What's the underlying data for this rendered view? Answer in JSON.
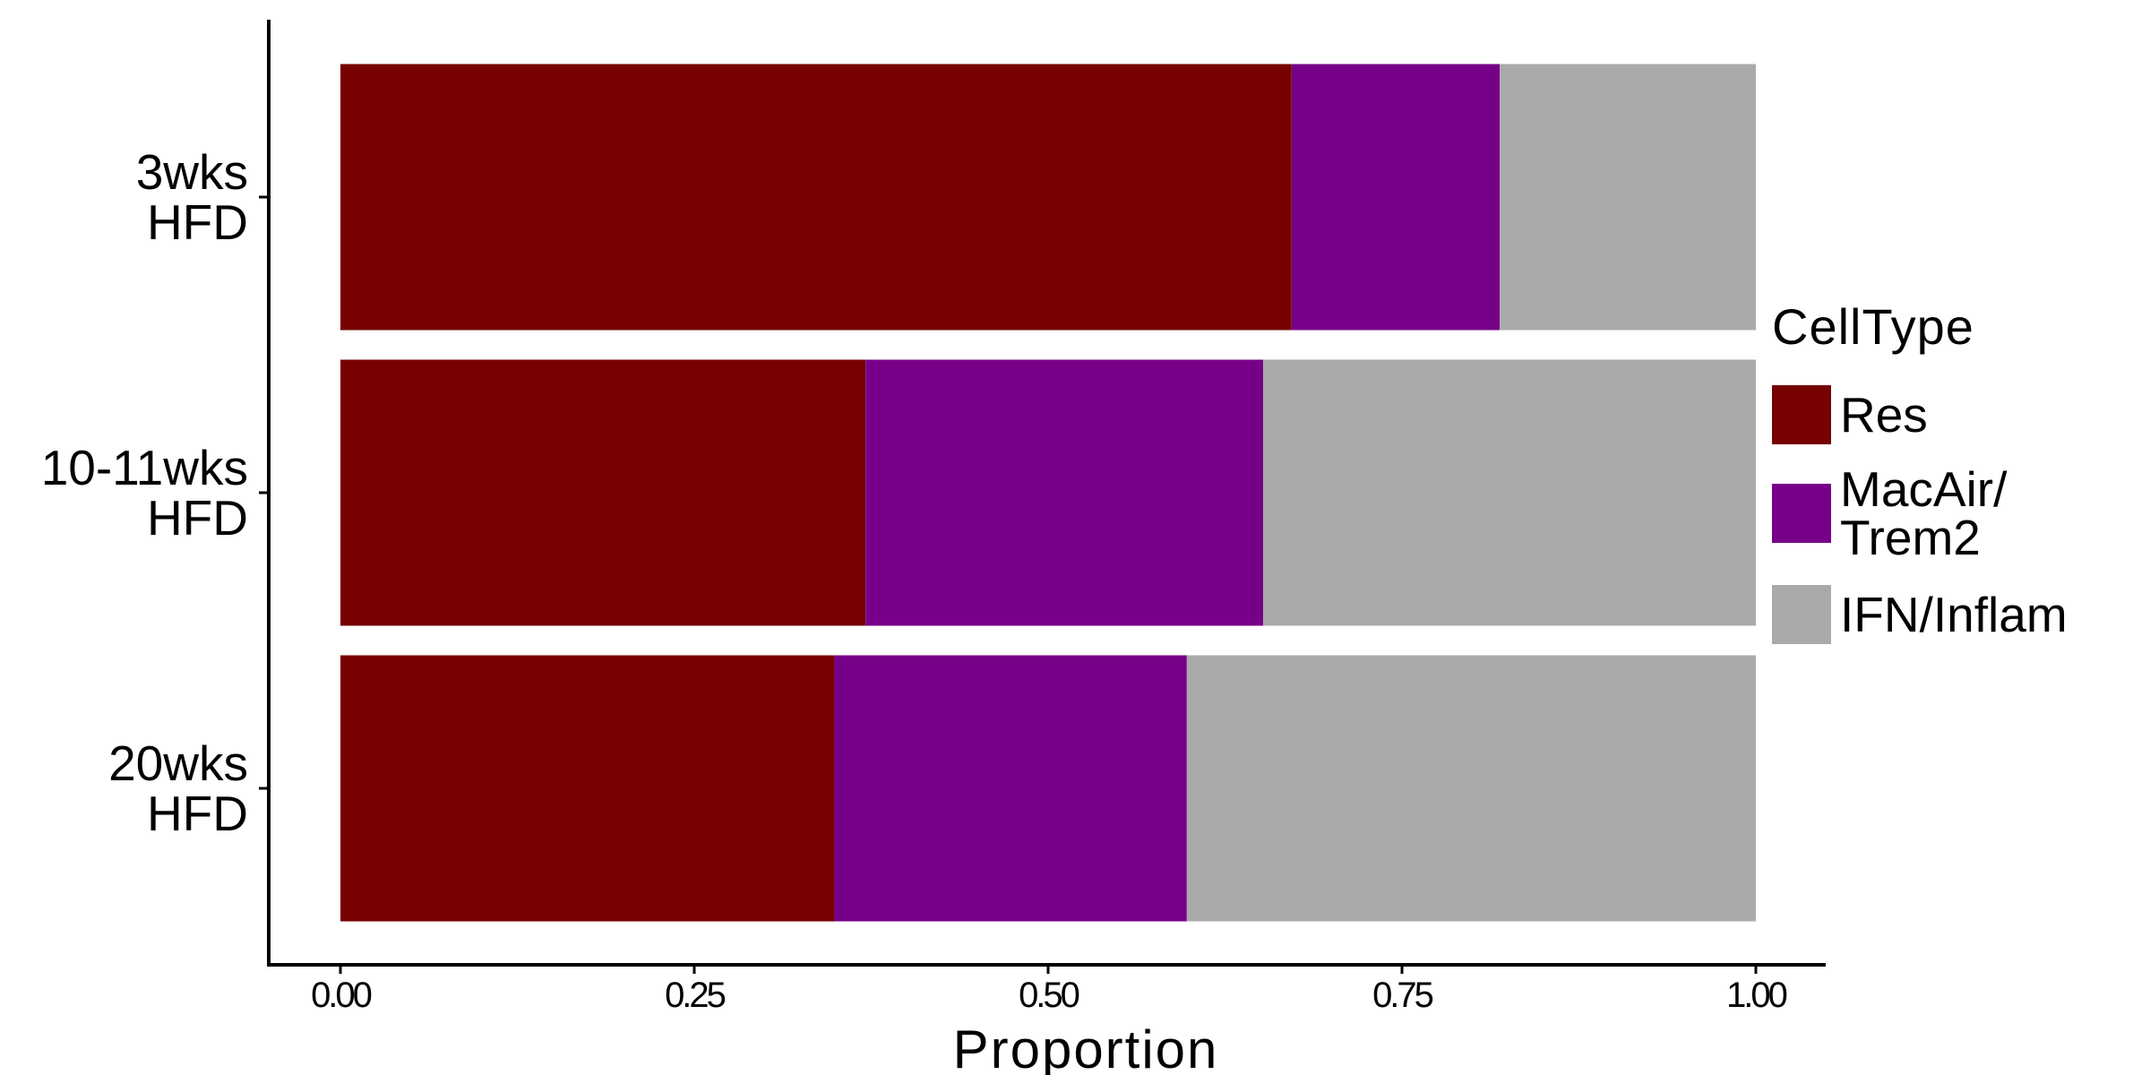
{
  "chart_data": {
    "type": "bar",
    "orientation": "horizontal",
    "stacked": true,
    "categories": [
      "3wks\nHFD",
      "10-11wks\nHFD",
      "20wks\nHFD"
    ],
    "series": [
      {
        "name": "Res",
        "color": "#770000",
        "values": [
          0.672,
          0.371,
          0.349
        ]
      },
      {
        "name": "MacAir/\nTrem2",
        "color": "#770088",
        "values": [
          0.147,
          0.281,
          0.249
        ]
      },
      {
        "name": "IFN/Inflam",
        "color": "#aaaaaa",
        "values": [
          0.181,
          0.348,
          0.402
        ]
      }
    ],
    "xlabel": "Proportion",
    "ylabel": "",
    "xlim": [
      0,
      1
    ],
    "xticks": [
      "0.00",
      "0.25",
      "0.50",
      "0.75",
      "1.00"
    ],
    "legend": {
      "title": "CellType",
      "position": "right"
    },
    "grid": false
  }
}
